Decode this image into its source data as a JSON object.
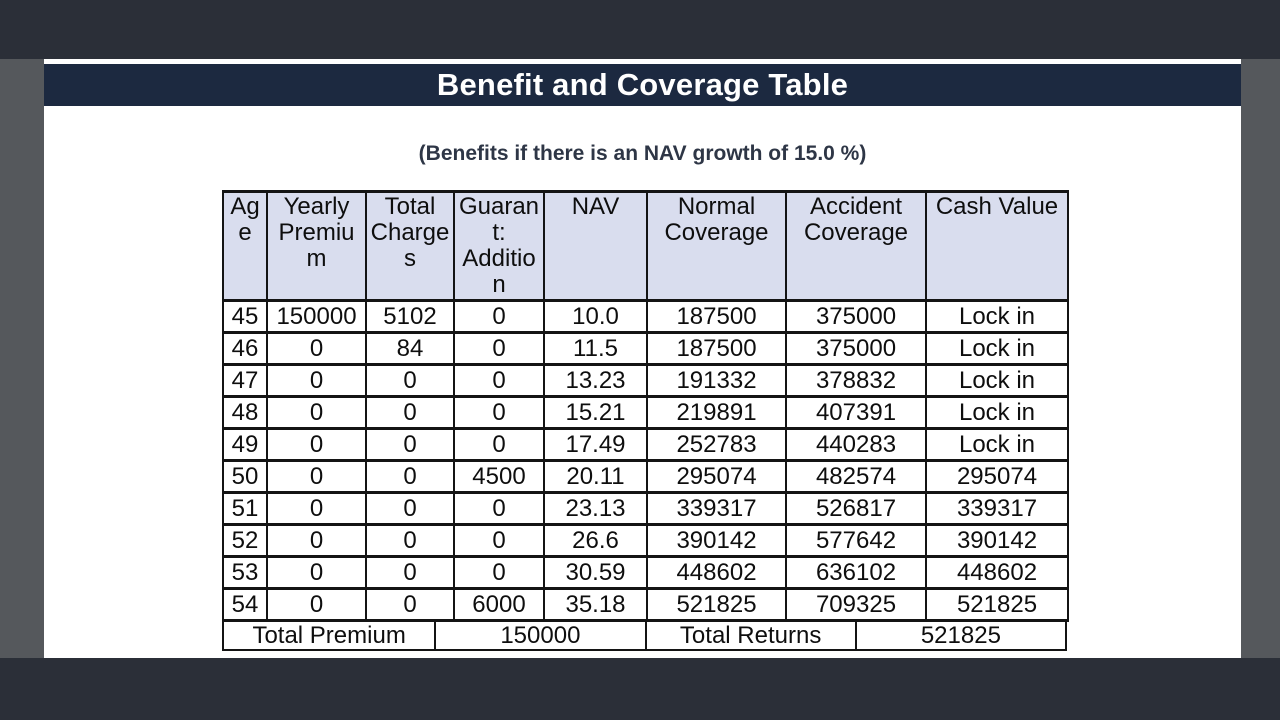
{
  "page": {
    "title": "Benefit and Coverage Table",
    "subtitle": "(Benefits if there is an NAV growth of 15.0 %)"
  },
  "table": {
    "columns": [
      "Age",
      "Yearly Premium",
      "Total Charges",
      "Guarant: Addition",
      "NAV",
      "Normal Coverage",
      "Accident Coverage",
      "Cash Value"
    ],
    "rows": [
      [
        "45",
        "150000",
        "5102",
        "0",
        "10.0",
        "187500",
        "375000",
        "Lock in"
      ],
      [
        "46",
        "0",
        "84",
        "0",
        "11.5",
        "187500",
        "375000",
        "Lock in"
      ],
      [
        "47",
        "0",
        "0",
        "0",
        "13.23",
        "191332",
        "378832",
        "Lock in"
      ],
      [
        "48",
        "0",
        "0",
        "0",
        "15.21",
        "219891",
        "407391",
        "Lock in"
      ],
      [
        "49",
        "0",
        "0",
        "0",
        "17.49",
        "252783",
        "440283",
        "Lock in"
      ],
      [
        "50",
        "0",
        "0",
        "4500",
        "20.11",
        "295074",
        "482574",
        "295074"
      ],
      [
        "51",
        "0",
        "0",
        "0",
        "23.13",
        "339317",
        "526817",
        "339317"
      ],
      [
        "52",
        "0",
        "0",
        "0",
        "26.6",
        "390142",
        "577642",
        "390142"
      ],
      [
        "53",
        "0",
        "0",
        "0",
        "30.59",
        "448602",
        "636102",
        "448602"
      ],
      [
        "54",
        "0",
        "0",
        "6000",
        "35.18",
        "521825",
        "709325",
        "521825"
      ]
    ],
    "footer": {
      "total_premium_label": "Total Premium",
      "total_premium_value": "150000",
      "total_returns_label": "Total Returns",
      "total_returns_value": "521825"
    }
  },
  "colors": {
    "frame_dark": "#2b2f38",
    "frame_gray": "#55585c",
    "title_bar_navy": "#1c2940",
    "header_cell_bg": "#d9ddee",
    "page_bg": "#ffffff",
    "border_black": "#141414"
  }
}
